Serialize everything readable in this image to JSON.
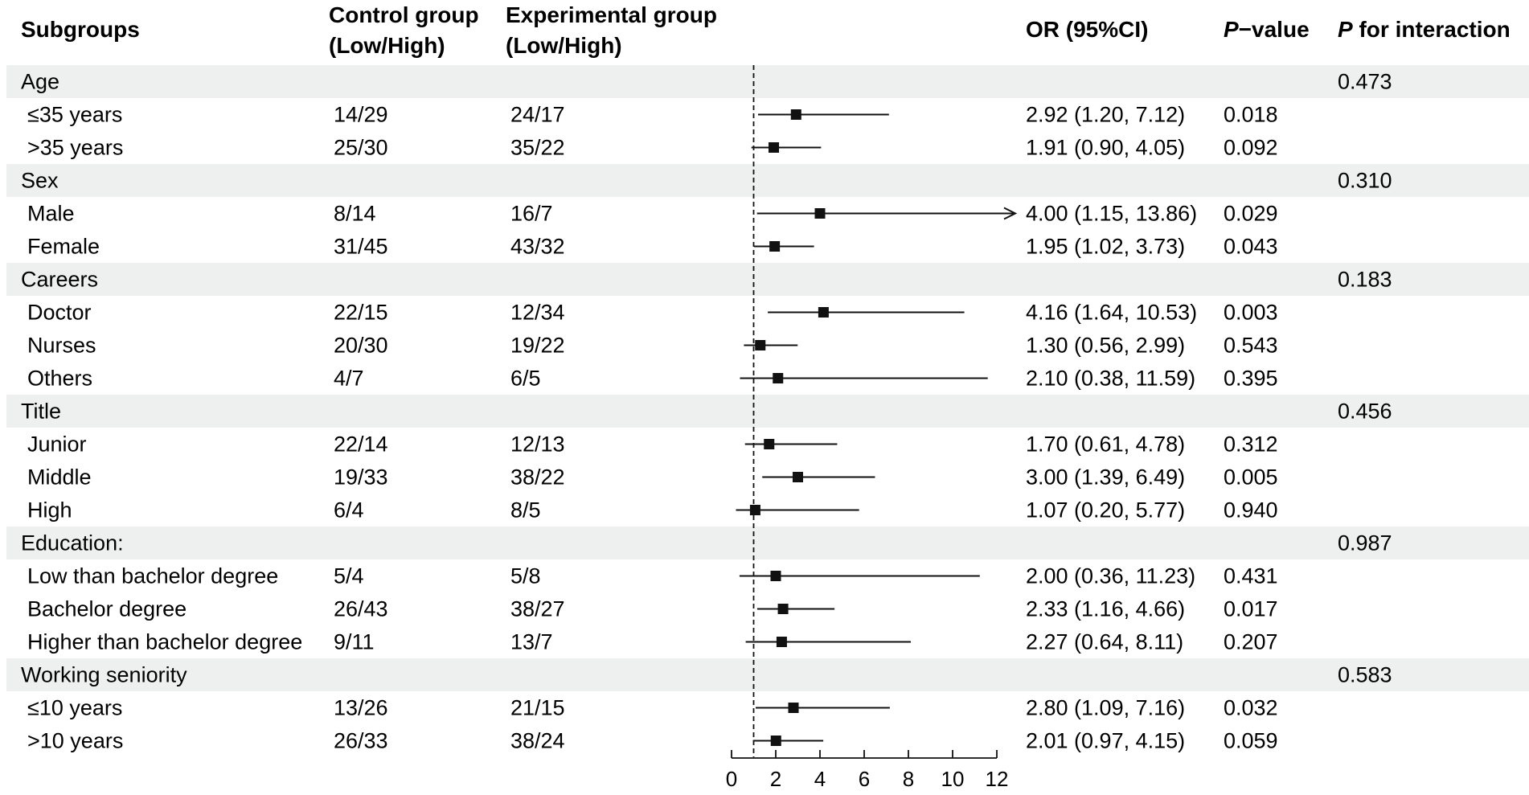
{
  "chart_data": {
    "type": "forest",
    "columns": {
      "subgroups": "Subgroups",
      "control_line1": "Control group",
      "control_line2": "(Low/High)",
      "experimental_line1": "Experimental group",
      "experimental_line2": "(Low/High)",
      "or": "OR (95%CI)",
      "pvalue_italic": "P",
      "pvalue_rest": "−value",
      "interaction_italic": "P",
      "interaction_rest": " for interaction"
    },
    "xaxis": {
      "min": 0,
      "max": 12,
      "ticks": [
        0,
        2,
        4,
        6,
        8,
        10,
        12
      ],
      "reference_line": 1
    },
    "rows": [
      {
        "type": "group",
        "label": "Age",
        "p_interaction": "0.473"
      },
      {
        "type": "item",
        "label": "≤35 years",
        "control": "14/29",
        "experimental": "24/17",
        "or_text": "2.92 (1.20, 7.12)",
        "p": "0.018",
        "or": 2.92,
        "lo": 1.2,
        "hi": 7.12
      },
      {
        "type": "item",
        "label": ">35 years",
        "control": "25/30",
        "experimental": "35/22",
        "or_text": "1.91 (0.90, 4.05)",
        "p": "0.092",
        "or": 1.91,
        "lo": 0.9,
        "hi": 4.05
      },
      {
        "type": "group",
        "label": "Sex",
        "p_interaction": "0.310"
      },
      {
        "type": "item",
        "label": "Male",
        "control": "8/14",
        "experimental": "16/7",
        "or_text": "4.00 (1.15, 13.86)",
        "p": "0.029",
        "or": 4.0,
        "lo": 1.15,
        "hi": 13.86
      },
      {
        "type": "item",
        "label": "Female",
        "control": "31/45",
        "experimental": "43/32",
        "or_text": "1.95 (1.02, 3.73)",
        "p": "0.043",
        "or": 1.95,
        "lo": 1.02,
        "hi": 3.73
      },
      {
        "type": "group",
        "label": "Careers",
        "p_interaction": "0.183"
      },
      {
        "type": "item",
        "label": "Doctor",
        "control": "22/15",
        "experimental": "12/34",
        "or_text": "4.16 (1.64, 10.53)",
        "p": "0.003",
        "or": 4.16,
        "lo": 1.64,
        "hi": 10.53
      },
      {
        "type": "item",
        "label": "Nurses",
        "control": "20/30",
        "experimental": "19/22",
        "or_text": "1.30 (0.56, 2.99)",
        "p": "0.543",
        "or": 1.3,
        "lo": 0.56,
        "hi": 2.99
      },
      {
        "type": "item",
        "label": "Others",
        "control": "4/7",
        "experimental": "6/5",
        "or_text": "2.10 (0.38, 11.59)",
        "p": "0.395",
        "or": 2.1,
        "lo": 0.38,
        "hi": 11.59
      },
      {
        "type": "group",
        "label": "Title",
        "p_interaction": "0.456"
      },
      {
        "type": "item",
        "label": "Junior",
        "control": "22/14",
        "experimental": "12/13",
        "or_text": "1.70 (0.61, 4.78)",
        "p": "0.312",
        "or": 1.7,
        "lo": 0.61,
        "hi": 4.78
      },
      {
        "type": "item",
        "label": "Middle",
        "control": "19/33",
        "experimental": "38/22",
        "or_text": "3.00 (1.39, 6.49)",
        "p": "0.005",
        "or": 3.0,
        "lo": 1.39,
        "hi": 6.49
      },
      {
        "type": "item",
        "label": "High",
        "control": "6/4",
        "experimental": "8/5",
        "or_text": "1.07 (0.20, 5.77)",
        "p": "0.940",
        "or": 1.07,
        "lo": 0.2,
        "hi": 5.77
      },
      {
        "type": "group",
        "label": "Education:",
        "p_interaction": "0.987"
      },
      {
        "type": "item",
        "label": "Low than bachelor degree",
        "control": "5/4",
        "experimental": "5/8",
        "or_text": "2.00 (0.36, 11.23)",
        "p": "0.431",
        "or": 2.0,
        "lo": 0.36,
        "hi": 11.23
      },
      {
        "type": "item",
        "label": "Bachelor degree",
        "control": "26/43",
        "experimental": "38/27",
        "or_text": "2.33 (1.16, 4.66)",
        "p": "0.017",
        "or": 2.33,
        "lo": 1.16,
        "hi": 4.66
      },
      {
        "type": "item",
        "label": "Higher than bachelor degree",
        "control": "9/11",
        "experimental": "13/7",
        "or_text": "2.27 (0.64, 8.11)",
        "p": "0.207",
        "or": 2.27,
        "lo": 0.64,
        "hi": 8.11
      },
      {
        "type": "group",
        "label": "Working seniority",
        "p_interaction": "0.583"
      },
      {
        "type": "item",
        "label": "≤10 years",
        "control": "13/26",
        "experimental": "21/15",
        "or_text": "2.80 (1.09, 7.16)",
        "p": "0.032",
        "or": 2.8,
        "lo": 1.09,
        "hi": 7.16
      },
      {
        "type": "item",
        "label": ">10 years",
        "control": "26/33",
        "experimental": "38/24",
        "or_text": "2.01 (0.97, 4.15)",
        "p": "0.059",
        "or": 2.01,
        "lo": 0.97,
        "hi": 4.15
      }
    ]
  }
}
